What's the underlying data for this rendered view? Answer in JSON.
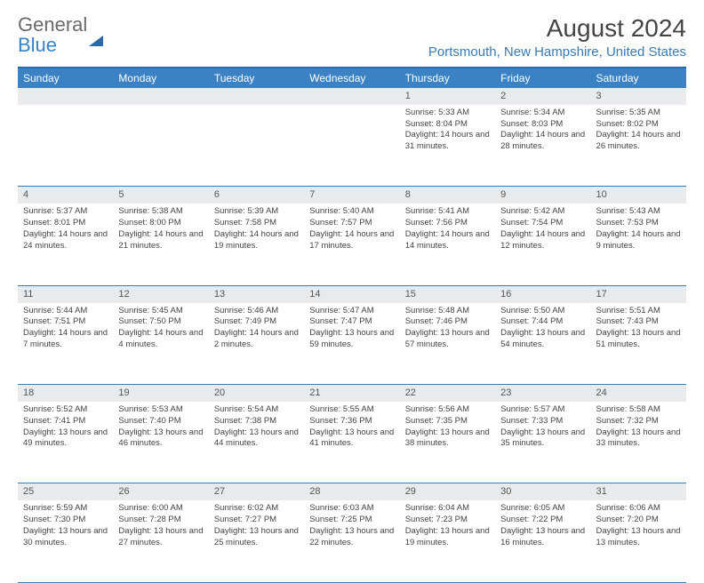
{
  "logo": {
    "line1": "General",
    "line2": "Blue"
  },
  "header": {
    "month_title": "August 2024",
    "location": "Portsmouth, New Hampshire, United States"
  },
  "colors": {
    "header_bar": "#3b82c4",
    "accent": "#2b6aa8",
    "location_text": "#3b7ab0",
    "daynum_bg": "#e9eaeb",
    "cell_border": "#3b7ab0"
  },
  "day_headers": [
    "Sunday",
    "Monday",
    "Tuesday",
    "Wednesday",
    "Thursday",
    "Friday",
    "Saturday"
  ],
  "weeks": [
    [
      {
        "day": "",
        "sunrise": "",
        "sunset": "",
        "daylight": ""
      },
      {
        "day": "",
        "sunrise": "",
        "sunset": "",
        "daylight": ""
      },
      {
        "day": "",
        "sunrise": "",
        "sunset": "",
        "daylight": ""
      },
      {
        "day": "",
        "sunrise": "",
        "sunset": "",
        "daylight": ""
      },
      {
        "day": "1",
        "sunrise": "Sunrise: 5:33 AM",
        "sunset": "Sunset: 8:04 PM",
        "daylight": "Daylight: 14 hours and 31 minutes."
      },
      {
        "day": "2",
        "sunrise": "Sunrise: 5:34 AM",
        "sunset": "Sunset: 8:03 PM",
        "daylight": "Daylight: 14 hours and 28 minutes."
      },
      {
        "day": "3",
        "sunrise": "Sunrise: 5:35 AM",
        "sunset": "Sunset: 8:02 PM",
        "daylight": "Daylight: 14 hours and 26 minutes."
      }
    ],
    [
      {
        "day": "4",
        "sunrise": "Sunrise: 5:37 AM",
        "sunset": "Sunset: 8:01 PM",
        "daylight": "Daylight: 14 hours and 24 minutes."
      },
      {
        "day": "5",
        "sunrise": "Sunrise: 5:38 AM",
        "sunset": "Sunset: 8:00 PM",
        "daylight": "Daylight: 14 hours and 21 minutes."
      },
      {
        "day": "6",
        "sunrise": "Sunrise: 5:39 AM",
        "sunset": "Sunset: 7:58 PM",
        "daylight": "Daylight: 14 hours and 19 minutes."
      },
      {
        "day": "7",
        "sunrise": "Sunrise: 5:40 AM",
        "sunset": "Sunset: 7:57 PM",
        "daylight": "Daylight: 14 hours and 17 minutes."
      },
      {
        "day": "8",
        "sunrise": "Sunrise: 5:41 AM",
        "sunset": "Sunset: 7:56 PM",
        "daylight": "Daylight: 14 hours and 14 minutes."
      },
      {
        "day": "9",
        "sunrise": "Sunrise: 5:42 AM",
        "sunset": "Sunset: 7:54 PM",
        "daylight": "Daylight: 14 hours and 12 minutes."
      },
      {
        "day": "10",
        "sunrise": "Sunrise: 5:43 AM",
        "sunset": "Sunset: 7:53 PM",
        "daylight": "Daylight: 14 hours and 9 minutes."
      }
    ],
    [
      {
        "day": "11",
        "sunrise": "Sunrise: 5:44 AM",
        "sunset": "Sunset: 7:51 PM",
        "daylight": "Daylight: 14 hours and 7 minutes."
      },
      {
        "day": "12",
        "sunrise": "Sunrise: 5:45 AM",
        "sunset": "Sunset: 7:50 PM",
        "daylight": "Daylight: 14 hours and 4 minutes."
      },
      {
        "day": "13",
        "sunrise": "Sunrise: 5:46 AM",
        "sunset": "Sunset: 7:49 PM",
        "daylight": "Daylight: 14 hours and 2 minutes."
      },
      {
        "day": "14",
        "sunrise": "Sunrise: 5:47 AM",
        "sunset": "Sunset: 7:47 PM",
        "daylight": "Daylight: 13 hours and 59 minutes."
      },
      {
        "day": "15",
        "sunrise": "Sunrise: 5:48 AM",
        "sunset": "Sunset: 7:46 PM",
        "daylight": "Daylight: 13 hours and 57 minutes."
      },
      {
        "day": "16",
        "sunrise": "Sunrise: 5:50 AM",
        "sunset": "Sunset: 7:44 PM",
        "daylight": "Daylight: 13 hours and 54 minutes."
      },
      {
        "day": "17",
        "sunrise": "Sunrise: 5:51 AM",
        "sunset": "Sunset: 7:43 PM",
        "daylight": "Daylight: 13 hours and 51 minutes."
      }
    ],
    [
      {
        "day": "18",
        "sunrise": "Sunrise: 5:52 AM",
        "sunset": "Sunset: 7:41 PM",
        "daylight": "Daylight: 13 hours and 49 minutes."
      },
      {
        "day": "19",
        "sunrise": "Sunrise: 5:53 AM",
        "sunset": "Sunset: 7:40 PM",
        "daylight": "Daylight: 13 hours and 46 minutes."
      },
      {
        "day": "20",
        "sunrise": "Sunrise: 5:54 AM",
        "sunset": "Sunset: 7:38 PM",
        "daylight": "Daylight: 13 hours and 44 minutes."
      },
      {
        "day": "21",
        "sunrise": "Sunrise: 5:55 AM",
        "sunset": "Sunset: 7:36 PM",
        "daylight": "Daylight: 13 hours and 41 minutes."
      },
      {
        "day": "22",
        "sunrise": "Sunrise: 5:56 AM",
        "sunset": "Sunset: 7:35 PM",
        "daylight": "Daylight: 13 hours and 38 minutes."
      },
      {
        "day": "23",
        "sunrise": "Sunrise: 5:57 AM",
        "sunset": "Sunset: 7:33 PM",
        "daylight": "Daylight: 13 hours and 35 minutes."
      },
      {
        "day": "24",
        "sunrise": "Sunrise: 5:58 AM",
        "sunset": "Sunset: 7:32 PM",
        "daylight": "Daylight: 13 hours and 33 minutes."
      }
    ],
    [
      {
        "day": "25",
        "sunrise": "Sunrise: 5:59 AM",
        "sunset": "Sunset: 7:30 PM",
        "daylight": "Daylight: 13 hours and 30 minutes."
      },
      {
        "day": "26",
        "sunrise": "Sunrise: 6:00 AM",
        "sunset": "Sunset: 7:28 PM",
        "daylight": "Daylight: 13 hours and 27 minutes."
      },
      {
        "day": "27",
        "sunrise": "Sunrise: 6:02 AM",
        "sunset": "Sunset: 7:27 PM",
        "daylight": "Daylight: 13 hours and 25 minutes."
      },
      {
        "day": "28",
        "sunrise": "Sunrise: 6:03 AM",
        "sunset": "Sunset: 7:25 PM",
        "daylight": "Daylight: 13 hours and 22 minutes."
      },
      {
        "day": "29",
        "sunrise": "Sunrise: 6:04 AM",
        "sunset": "Sunset: 7:23 PM",
        "daylight": "Daylight: 13 hours and 19 minutes."
      },
      {
        "day": "30",
        "sunrise": "Sunrise: 6:05 AM",
        "sunset": "Sunset: 7:22 PM",
        "daylight": "Daylight: 13 hours and 16 minutes."
      },
      {
        "day": "31",
        "sunrise": "Sunrise: 6:06 AM",
        "sunset": "Sunset: 7:20 PM",
        "daylight": "Daylight: 13 hours and 13 minutes."
      }
    ]
  ]
}
